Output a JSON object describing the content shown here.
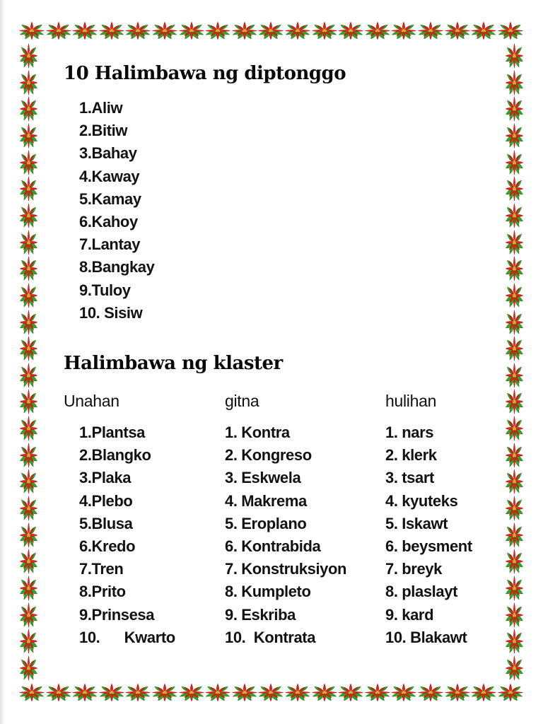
{
  "document": {
    "section_diptonggo": {
      "title": "10 Halimbawa ng diptonggo",
      "items": [
        "1.Aliw",
        "2.Bitiw",
        "3.Bahay",
        "4.Kaway",
        "5.Kamay",
        "6.Kahoy",
        "7.Lantay",
        "8.Bangkay",
        "9.Tuloy",
        "10. Sisiw"
      ]
    },
    "section_klaster": {
      "title": "Halimbawa ng klaster",
      "columns": [
        {
          "header": "Unahan",
          "items": [
            "1.Plantsa",
            "2.Blangko",
            "3.Plaka",
            "4.Plebo",
            "5.Blusa",
            "6.Kredo",
            "7.Tren",
            "8.Prito",
            "9.Prinsesa",
            "10.      Kwarto"
          ]
        },
        {
          "header": "gitna",
          "items": [
            "1. Kontra",
            "2. Kongreso",
            "3. Eskwela",
            "4. Makrema",
            "5. Eroplano",
            "6. Kontrabida",
            "7. Konstruksiyon",
            "8. Kumpleto",
            "9. Eskriba",
            "10.  Kontrata"
          ]
        },
        {
          "header": "hulihan",
          "items": [
            "1. nars",
            "2. klerk",
            "3. tsart",
            "4. kyuteks",
            "5. Iskawt",
            "6. beysment",
            "7. breyk",
            "8. plaslayt",
            "9. kard",
            "10. Blakawt"
          ]
        }
      ]
    }
  },
  "border": {
    "icon": "poinsettia-flower-icon",
    "colors": {
      "petal_red": "#e22516",
      "petal_dark_red": "#9e0d00",
      "leaf_green": "#35a42a",
      "leaf_dark_green": "#1d6f15",
      "center_gold": "#eebb2d",
      "center_dark_gold": "#c08612"
    }
  }
}
